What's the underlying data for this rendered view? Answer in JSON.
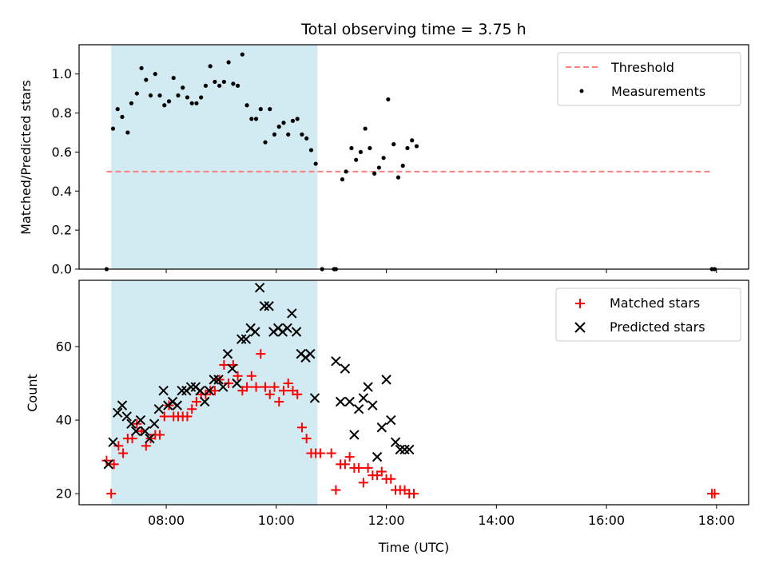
{
  "chart_data": [
    {
      "type": "scatter",
      "title": "Total observing time = 3.75 h",
      "xlabel": "",
      "ylabel": "Matched/Predicted stars",
      "xlim": [
        "06:25",
        "18:35"
      ],
      "ylim": [
        0,
        1.15
      ],
      "x_ticks": [
        "08:00",
        "10:00",
        "12:00",
        "14:00",
        "16:00",
        "18:00"
      ],
      "y_ticks": [
        "0.0",
        "0.2",
        "0.4",
        "0.6",
        "0.8",
        "1.0"
      ],
      "legend": "top-right",
      "grid": false,
      "shaded_interval": {
        "start": "07:00",
        "end": "10:45",
        "color": "#add8e6"
      },
      "series": [
        {
          "name": "Threshold",
          "kind": "dashed-line",
          "color": "#ff7f7f",
          "x": [
            "06:55",
            "17:55"
          ],
          "y": [
            0.5,
            0.5
          ]
        },
        {
          "name": "Measurements",
          "kind": "points",
          "color": "#000000",
          "x": [
            "06:55",
            "07:02",
            "07:07",
            "07:12",
            "07:18",
            "07:22",
            "07:28",
            "07:33",
            "07:38",
            "07:43",
            "07:48",
            "07:53",
            "07:58",
            "08:03",
            "08:08",
            "08:13",
            "08:18",
            "08:23",
            "08:28",
            "08:33",
            "08:38",
            "08:43",
            "08:48",
            "08:53",
            "08:58",
            "09:03",
            "09:08",
            "09:13",
            "09:18",
            "09:23",
            "09:28",
            "09:33",
            "09:38",
            "09:43",
            "09:48",
            "09:53",
            "09:58",
            "10:03",
            "10:08",
            "10:13",
            "10:18",
            "10:23",
            "10:28",
            "10:33",
            "10:38",
            "10:43",
            "10:50",
            "11:03",
            "11:05",
            "11:12",
            "11:16",
            "11:22",
            "11:27",
            "11:32",
            "11:37",
            "11:42",
            "11:47",
            "11:52",
            "11:57",
            "12:02",
            "12:08",
            "12:13",
            "12:18",
            "12:23",
            "12:28",
            "12:33",
            "17:55",
            "17:58"
          ],
          "y": [
            0.0,
            0.72,
            0.82,
            0.78,
            0.7,
            0.85,
            0.9,
            1.03,
            0.97,
            0.89,
            1.0,
            0.89,
            0.84,
            0.86,
            0.98,
            0.89,
            0.93,
            0.88,
            0.85,
            0.85,
            0.88,
            0.94,
            1.04,
            0.96,
            0.94,
            0.96,
            1.06,
            0.95,
            0.94,
            1.1,
            0.84,
            0.77,
            0.77,
            0.82,
            0.65,
            0.82,
            0.69,
            0.73,
            0.75,
            0.69,
            0.76,
            0.77,
            0.69,
            0.67,
            0.61,
            0.54,
            0.0,
            0.0,
            0.0,
            0.46,
            0.5,
            0.62,
            0.56,
            0.6,
            0.72,
            0.62,
            0.49,
            0.52,
            0.57,
            0.87,
            0.64,
            0.47,
            0.53,
            0.62,
            0.66,
            0.63,
            0.0,
            0.0
          ]
        }
      ]
    },
    {
      "type": "scatter",
      "title": "",
      "xlabel": "Time (UTC)",
      "ylabel": "Count",
      "xlim": [
        "06:25",
        "18:35"
      ],
      "ylim": [
        17,
        78
      ],
      "x_ticks": [
        "08:00",
        "10:00",
        "12:00",
        "14:00",
        "16:00",
        "18:00"
      ],
      "y_ticks": [
        "20",
        "40",
        "60"
      ],
      "legend": "top-right",
      "grid": false,
      "shaded_interval": {
        "start": "07:00",
        "end": "10:45",
        "color": "#add8e6"
      },
      "series": [
        {
          "name": "Matched stars",
          "marker": "+",
          "color": "#ff0000",
          "x": [
            "06:55",
            "07:00",
            "07:03",
            "07:08",
            "07:13",
            "07:18",
            "07:23",
            "07:28",
            "07:33",
            "07:38",
            "07:43",
            "07:48",
            "07:53",
            "07:58",
            "08:03",
            "08:08",
            "08:13",
            "08:18",
            "08:23",
            "08:28",
            "08:33",
            "08:38",
            "08:43",
            "08:48",
            "08:53",
            "08:58",
            "09:03",
            "09:08",
            "09:13",
            "09:18",
            "09:23",
            "09:28",
            "09:33",
            "09:38",
            "09:43",
            "09:48",
            "09:53",
            "09:58",
            "10:03",
            "10:08",
            "10:13",
            "10:18",
            "10:23",
            "10:28",
            "10:33",
            "10:38",
            "10:43",
            "10:48",
            "11:00",
            "11:05",
            "11:10",
            "11:15",
            "11:20",
            "11:25",
            "11:30",
            "11:35",
            "11:40",
            "11:45",
            "11:50",
            "11:55",
            "12:00",
            "12:05",
            "12:10",
            "12:15",
            "12:20",
            "12:25",
            "12:30",
            "17:55",
            "17:58"
          ],
          "y": [
            29,
            20,
            28,
            33,
            31,
            35,
            35,
            39,
            37,
            33,
            35,
            36,
            36,
            41,
            44,
            41,
            41,
            41,
            41,
            43,
            45,
            47,
            47,
            48,
            48,
            51,
            55,
            50,
            55,
            52,
            48,
            49,
            52,
            49,
            58,
            49,
            47,
            49,
            45,
            48,
            50,
            48,
            47,
            38,
            35,
            31,
            31,
            31,
            31,
            21,
            28,
            28,
            30,
            27,
            27,
            23,
            27,
            25,
            25,
            26,
            24,
            24,
            21,
            21,
            21,
            20,
            20,
            20,
            20
          ]
        },
        {
          "name": "Predicted stars",
          "marker": "x",
          "color": "#000000",
          "x": [
            "06:57",
            "07:02",
            "07:07",
            "07:12",
            "07:17",
            "07:22",
            "07:27",
            "07:32",
            "07:37",
            "07:42",
            "07:47",
            "07:52",
            "07:57",
            "08:02",
            "08:07",
            "08:12",
            "08:17",
            "08:22",
            "08:27",
            "08:32",
            "08:37",
            "08:42",
            "08:47",
            "08:52",
            "08:57",
            "09:02",
            "09:07",
            "09:12",
            "09:17",
            "09:22",
            "09:27",
            "09:32",
            "09:37",
            "09:42",
            "09:47",
            "09:52",
            "09:57",
            "10:02",
            "10:07",
            "10:12",
            "10:17",
            "10:22",
            "10:27",
            "10:32",
            "10:37",
            "10:42",
            "11:05",
            "11:10",
            "11:15",
            "11:20",
            "11:25",
            "11:30",
            "11:35",
            "11:40",
            "11:45",
            "11:50",
            "11:55",
            "12:00",
            "12:05",
            "12:10",
            "12:15",
            "12:20",
            "12:25"
          ],
          "y": [
            28,
            34,
            42,
            44,
            41,
            39,
            37,
            40,
            37,
            35,
            39,
            43,
            48,
            44,
            45,
            44,
            48,
            48,
            49,
            49,
            48,
            45,
            48,
            51,
            51,
            49,
            58,
            54,
            50,
            62,
            62,
            65,
            64,
            76,
            71,
            71,
            64,
            65,
            64,
            65,
            69,
            64,
            58,
            57,
            58,
            46,
            56,
            45,
            54,
            45,
            36,
            43,
            46,
            49,
            44,
            30,
            38,
            51,
            40,
            34,
            32,
            32,
            32
          ]
        }
      ]
    }
  ]
}
